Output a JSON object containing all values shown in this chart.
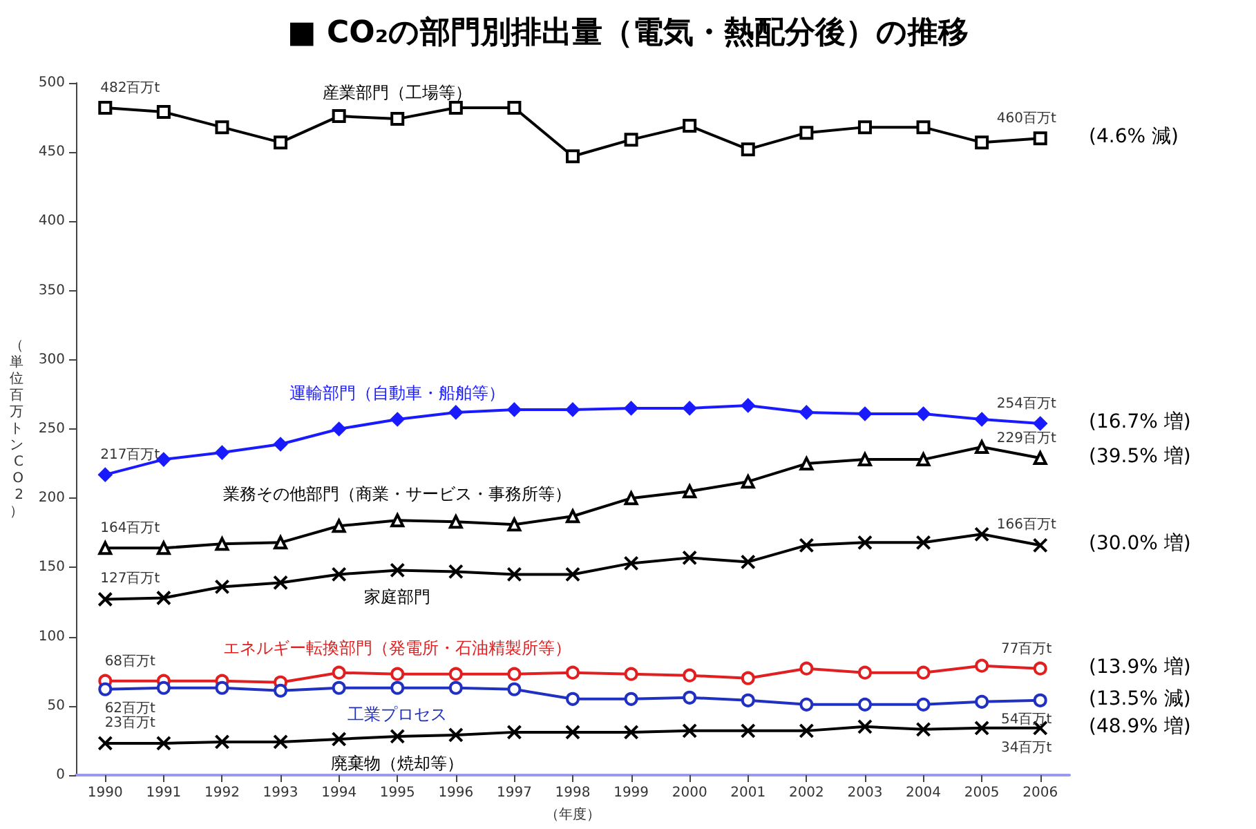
{
  "chart_data": {
    "type": "line",
    "title": "■ CO₂の部門別排出量（電気・熱配分後）の推移",
    "xlabel": "（年度）",
    "ylabel": "（単位百万トンCO2）",
    "categories": [
      "1990",
      "1991",
      "1992",
      "1993",
      "1994",
      "1995",
      "1996",
      "1997",
      "1998",
      "1999",
      "2000",
      "2001",
      "2002",
      "2003",
      "2004",
      "2005",
      "2006"
    ],
    "ylim": [
      0,
      500
    ],
    "yticks": [
      0,
      50,
      100,
      150,
      200,
      250,
      300,
      350,
      400,
      450,
      500
    ],
    "grid": false,
    "legend": false,
    "series": [
      {
        "name": "産業部門（工場等）",
        "color": "#000000",
        "marker": "square",
        "values": [
          482,
          479,
          468,
          457,
          476,
          474,
          482,
          482,
          447,
          459,
          469,
          452,
          464,
          468,
          468,
          457,
          460
        ],
        "value_labels": [
          "482百万t",
          null,
          null,
          null,
          null,
          null,
          null,
          null,
          null,
          null,
          null,
          null,
          null,
          null,
          null,
          null,
          "460百万t"
        ]
      },
      {
        "name": "運輸部門（自動車・船舶等）",
        "color": "#1a1aff",
        "marker": "diamond",
        "values": [
          217,
          228,
          233,
          239,
          250,
          257,
          262,
          264,
          264,
          265,
          265,
          267,
          262,
          261,
          261,
          257,
          254
        ],
        "value_labels": [
          "217百万t",
          null,
          null,
          null,
          null,
          null,
          null,
          null,
          null,
          null,
          null,
          null,
          null,
          null,
          null,
          null,
          "254百万t"
        ]
      },
      {
        "name": "業務その他部門（商業・サービス・事務所等）",
        "color": "#000000",
        "marker": "triangle",
        "values": [
          164,
          164,
          167,
          168,
          180,
          184,
          183,
          181,
          187,
          200,
          205,
          212,
          225,
          228,
          228,
          237,
          229
        ],
        "value_labels": [
          "164百万t",
          null,
          null,
          null,
          null,
          null,
          null,
          null,
          null,
          null,
          null,
          null,
          null,
          null,
          null,
          null,
          "229百万t"
        ]
      },
      {
        "name": "家庭部門",
        "color": "#000000",
        "marker": "cross",
        "values": [
          127,
          128,
          136,
          139,
          145,
          148,
          147,
          145,
          145,
          153,
          157,
          154,
          166,
          168,
          168,
          174,
          166
        ],
        "value_labels": [
          "127百万t",
          null,
          null,
          null,
          null,
          null,
          null,
          null,
          null,
          null,
          null,
          null,
          null,
          null,
          null,
          null,
          "166百万t"
        ]
      },
      {
        "name": "エネルギー転換部門（発電所・石油精製所等）",
        "color": "#e02020",
        "marker": "circle",
        "values": [
          68,
          68,
          68,
          67,
          74,
          73,
          73,
          73,
          74,
          73,
          72,
          70,
          77,
          74,
          74,
          79,
          77
        ],
        "value_labels": [
          "68百万t",
          null,
          null,
          null,
          null,
          null,
          null,
          null,
          null,
          null,
          null,
          null,
          null,
          null,
          null,
          null,
          "77百万t"
        ]
      },
      {
        "name": "工業プロセス",
        "color": "#2030c0",
        "marker": "circle",
        "values": [
          62,
          63,
          63,
          61,
          63,
          63,
          63,
          62,
          55,
          55,
          56,
          54,
          51,
          51,
          51,
          53,
          54
        ],
        "value_labels": [
          "62百万t",
          null,
          null,
          null,
          null,
          null,
          null,
          null,
          null,
          null,
          null,
          null,
          null,
          null,
          null,
          null,
          "54百万t"
        ]
      },
      {
        "name": "廃棄物（焼却等）",
        "color": "#000000",
        "marker": "cross",
        "values": [
          23,
          23,
          24,
          24,
          26,
          28,
          29,
          31,
          31,
          31,
          32,
          32,
          32,
          35,
          33,
          34,
          34
        ],
        "value_labels": [
          "23百万t",
          null,
          null,
          null,
          null,
          null,
          null,
          null,
          null,
          null,
          null,
          null,
          null,
          null,
          null,
          null,
          "34百万t"
        ]
      }
    ],
    "annotations": [
      {
        "text": "(4.6% 減)",
        "x": "2006",
        "y": 460
      },
      {
        "text": "(16.7% 増)",
        "x": "2006",
        "y": 254
      },
      {
        "text": "(39.5% 増)",
        "x": "2006",
        "y": 229
      },
      {
        "text": "(30.0% 増)",
        "x": "2006",
        "y": 166
      },
      {
        "text": "(13.9% 増)",
        "x": "2006",
        "y": 77
      },
      {
        "text": "(13.5% 減)",
        "x": "2006",
        "y": 54
      },
      {
        "text": "(48.9% 増)",
        "x": "2006",
        "y": 34
      }
    ]
  }
}
